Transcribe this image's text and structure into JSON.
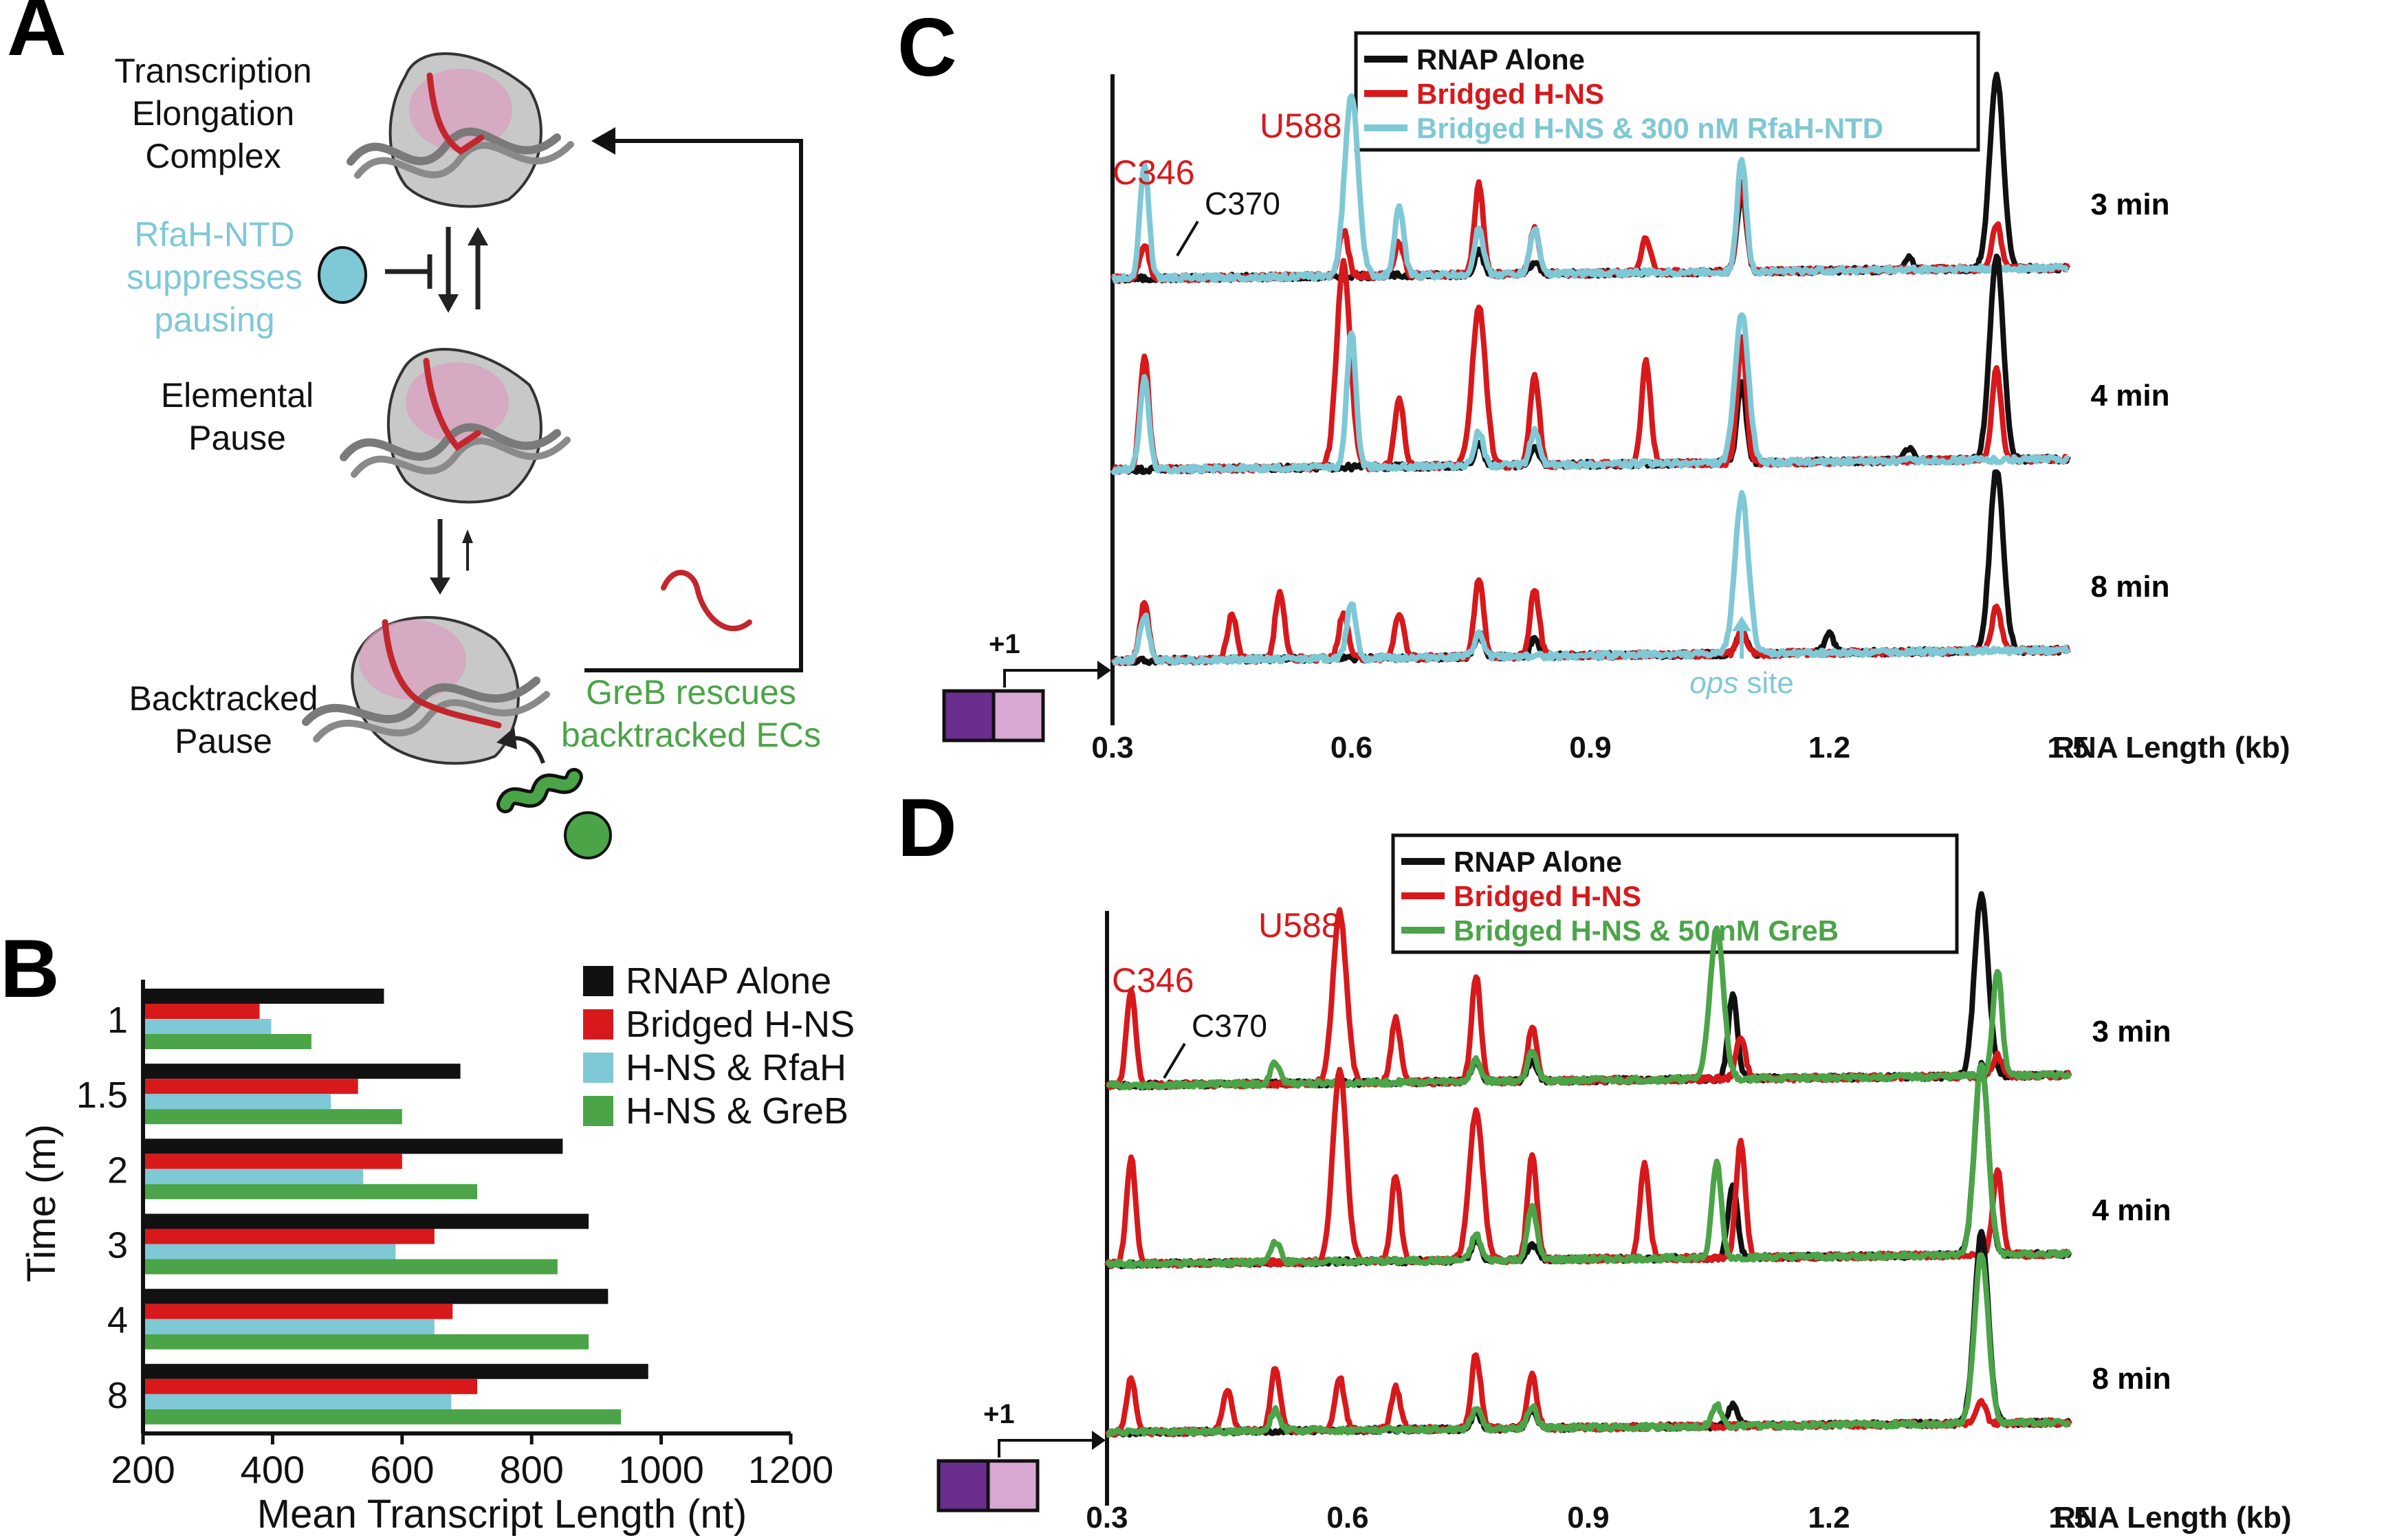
{
  "panels": {
    "a": "A",
    "b": "B",
    "c": "C",
    "d": "D"
  },
  "diagram": {
    "tec_lines": [
      "Transcription",
      "Elongation",
      "Complex"
    ],
    "rfah_lines": [
      "RfaH-NTD",
      "suppresses",
      "pausing"
    ],
    "elemental_lines": [
      "Elemental",
      "Pause"
    ],
    "backtracked_lines": [
      "Backtracked",
      "Pause"
    ],
    "greb_lines": [
      "GreB rescues",
      "backtracked ECs"
    ],
    "colors": {
      "rfah": "#7fc8d6",
      "greb": "#4ba448",
      "rna": "#c1272d",
      "dna": "#808080",
      "rnap": "#c8c8c8",
      "rnap_pink": "#d9a0c0"
    }
  },
  "chart_data": [
    {
      "panel": "B",
      "type": "bar",
      "orientation": "horizontal",
      "categories": [
        "1",
        "1.5",
        "2",
        "3",
        "4",
        "8"
      ],
      "series": [
        {
          "name": "RNAP Alone",
          "color": "#111111",
          "values": [
            572,
            690,
            848,
            888,
            918,
            980
          ]
        },
        {
          "name": "Bridged H-NS",
          "color": "#d7191c",
          "values": [
            380,
            532,
            600,
            650,
            678,
            716
          ]
        },
        {
          "name": "H-NS & RfaH",
          "color": "#7fc8d6",
          "values": [
            398,
            490,
            540,
            590,
            650,
            676
          ]
        },
        {
          "name": "H-NS & GreB",
          "color": "#4ba448",
          "values": [
            460,
            600,
            716,
            840,
            888,
            938
          ]
        }
      ],
      "xlabel": "Mean Transcript Length (nt)",
      "ylabel": "Time (m)",
      "xlim": [
        200,
        1200
      ],
      "xticks": [
        "200",
        "400",
        "600",
        "800",
        "1000",
        "1200"
      ],
      "legend_position": "top-right"
    },
    {
      "panel": "C",
      "type": "line",
      "x_unit": "kb",
      "xlim": [
        0.3,
        1.5
      ],
      "xticks": [
        "0.3",
        "0.6",
        "0.9",
        "1.2",
        "1.5"
      ],
      "xlabel": "RNA Length (kb)",
      "legend_position": "top",
      "series": [
        {
          "name": "RNAP Alone",
          "color": "#111111"
        },
        {
          "name": "Bridged H-NS",
          "color": "#d7191c"
        },
        {
          "name": "Bridged H-NS & 300 nM RfaH-NTD",
          "color": "#7fc8d6"
        }
      ],
      "times": [
        {
          "label": "3 min",
          "peaks": {
            "black": [
              [
                0.76,
                0.1
              ],
              [
                0.83,
                0.05
              ],
              [
                1.09,
                0.35
              ],
              [
                1.3,
                0.05
              ],
              [
                1.41,
                0.85
              ]
            ],
            "red": [
              [
                0.34,
                0.15
              ],
              [
                0.59,
                0.2
              ],
              [
                0.66,
                0.15
              ],
              [
                0.76,
                0.4
              ],
              [
                0.83,
                0.2
              ],
              [
                0.97,
                0.15
              ],
              [
                1.09,
                0.4
              ],
              [
                1.41,
                0.2
              ]
            ],
            "blue": [
              [
                0.34,
                0.5
              ],
              [
                0.6,
                0.8
              ],
              [
                0.66,
                0.3
              ],
              [
                0.76,
                0.2
              ],
              [
                0.83,
                0.2
              ],
              [
                1.09,
                0.5
              ]
            ]
          }
        },
        {
          "label": "4 min",
          "peaks": {
            "black": [
              [
                0.76,
                0.1
              ],
              [
                0.83,
                0.07
              ],
              [
                1.09,
                0.35
              ],
              [
                1.3,
                0.05
              ],
              [
                1.41,
                0.9
              ]
            ],
            "red": [
              [
                0.34,
                0.5
              ],
              [
                0.59,
                0.9
              ],
              [
                0.66,
                0.3
              ],
              [
                0.76,
                0.7
              ],
              [
                0.83,
                0.4
              ],
              [
                0.97,
                0.45
              ],
              [
                1.09,
                0.55
              ],
              [
                1.41,
                0.4
              ]
            ],
            "blue": [
              [
                0.34,
                0.4
              ],
              [
                0.6,
                0.6
              ],
              [
                0.76,
                0.15
              ],
              [
                0.83,
                0.15
              ],
              [
                1.09,
                0.65
              ]
            ]
          }
        },
        {
          "label": "8 min",
          "peaks": {
            "black": [
              [
                0.76,
                0.1
              ],
              [
                0.83,
                0.08
              ],
              [
                1.09,
                0.1
              ],
              [
                1.2,
                0.08
              ],
              [
                1.41,
                0.8
              ]
            ],
            "red": [
              [
                0.34,
                0.25
              ],
              [
                0.45,
                0.2
              ],
              [
                0.51,
                0.3
              ],
              [
                0.59,
                0.2
              ],
              [
                0.66,
                0.2
              ],
              [
                0.76,
                0.35
              ],
              [
                0.83,
                0.3
              ],
              [
                1.09,
                0.1
              ],
              [
                1.41,
                0.2
              ]
            ],
            "blue": [
              [
                0.34,
                0.2
              ],
              [
                0.6,
                0.25
              ],
              [
                0.76,
                0.1
              ],
              [
                1.09,
                0.7
              ]
            ]
          }
        }
      ],
      "annotations": {
        "c346": "C346",
        "c370": "C370",
        "u588": "U588",
        "plus_one": "+1",
        "ops_site_prefix": "ops",
        "ops_site_suffix": " site"
      }
    },
    {
      "panel": "D",
      "type": "line",
      "x_unit": "kb",
      "xlim": [
        0.3,
        1.5
      ],
      "xticks": [
        "0.3",
        "0.6",
        "0.9",
        "1.2",
        "1.5"
      ],
      "xlabel": "RNA Length (kb)",
      "legend_position": "top",
      "series": [
        {
          "name": "RNAP Alone",
          "color": "#111111"
        },
        {
          "name": "Bridged H-NS",
          "color": "#d7191c"
        },
        {
          "name": "Bridged H-NS & 50 nM GreB",
          "color": "#4ba448"
        }
      ],
      "times": [
        {
          "label": "3 min",
          "peaks": {
            "black": [
              [
                0.76,
                0.1
              ],
              [
                0.83,
                0.1
              ],
              [
                1.08,
                0.4
              ],
              [
                1.39,
                0.85
              ]
            ],
            "red": [
              [
                0.33,
                0.45
              ],
              [
                0.59,
                0.8
              ],
              [
                0.66,
                0.3
              ],
              [
                0.76,
                0.5
              ],
              [
                0.83,
                0.25
              ],
              [
                1.09,
                0.2
              ],
              [
                1.41,
                0.1
              ]
            ],
            "green": [
              [
                0.51,
                0.1
              ],
              [
                0.76,
                0.1
              ],
              [
                0.83,
                0.15
              ],
              [
                1.06,
                0.7
              ],
              [
                1.41,
                0.5
              ]
            ]
          }
        },
        {
          "label": "4 min",
          "peaks": {
            "black": [
              [
                0.76,
                0.1
              ],
              [
                0.83,
                0.07
              ],
              [
                1.08,
                0.35
              ],
              [
                1.39,
                0.9
              ]
            ],
            "red": [
              [
                0.33,
                0.5
              ],
              [
                0.59,
                0.9
              ],
              [
                0.66,
                0.4
              ],
              [
                0.76,
                0.7
              ],
              [
                0.83,
                0.5
              ],
              [
                0.97,
                0.45
              ],
              [
                1.09,
                0.55
              ],
              [
                1.41,
                0.4
              ]
            ],
            "green": [
              [
                0.51,
                0.1
              ],
              [
                0.76,
                0.12
              ],
              [
                0.83,
                0.25
              ],
              [
                1.06,
                0.45
              ],
              [
                1.39,
                0.9
              ]
            ]
          }
        },
        {
          "label": "8 min",
          "peaks": {
            "black": [
              [
                0.76,
                0.08
              ],
              [
                0.83,
                0.08
              ],
              [
                1.08,
                0.1
              ],
              [
                1.39,
                0.9
              ]
            ],
            "red": [
              [
                0.33,
                0.25
              ],
              [
                0.45,
                0.2
              ],
              [
                0.51,
                0.3
              ],
              [
                0.59,
                0.25
              ],
              [
                0.66,
                0.2
              ],
              [
                0.76,
                0.35
              ],
              [
                0.83,
                0.25
              ],
              [
                1.39,
                0.1
              ]
            ],
            "green": [
              [
                0.51,
                0.1
              ],
              [
                0.76,
                0.1
              ],
              [
                0.83,
                0.1
              ],
              [
                1.06,
                0.1
              ],
              [
                1.39,
                0.8
              ]
            ]
          }
        }
      ],
      "annotations": {
        "c346": "C346",
        "c370": "C370",
        "u588": "U588",
        "plus_one": "+1"
      }
    }
  ]
}
